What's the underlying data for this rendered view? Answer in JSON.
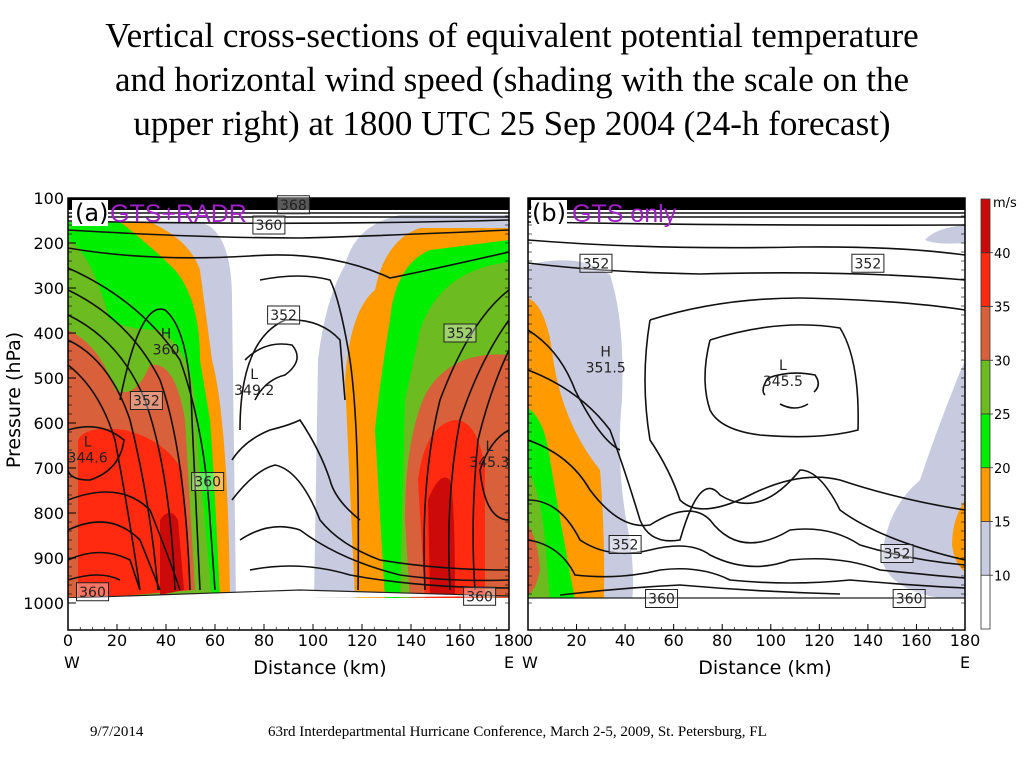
{
  "slide": {
    "title_lines": [
      "Vertical cross-sections of equivalent potential temperature",
      "and horizontal wind speed (shading with the scale on the",
      "upper right) at 1800 UTC 25 Sep 2004 (24-h forecast)"
    ],
    "footer_date": "9/7/2014",
    "footer_text": "63rd Interdepartmental Hurricane Conference, March 2-5, 2009, St. Petersburg, FL"
  },
  "chart_data": [
    {
      "type": "heatmap",
      "panel": "(a)",
      "run_label": "GTS+RADR",
      "title": "(a) GTS+RADR",
      "xlabel": "Distance (km)",
      "ylabel": "Pressure (hPa)",
      "x_ticks": [
        0,
        20,
        40,
        60,
        80,
        100,
        120,
        140,
        160,
        180
      ],
      "x_end_labels": {
        "left": "W",
        "right": "E"
      },
      "y_ticks": [
        100,
        200,
        300,
        400,
        500,
        600,
        700,
        800,
        900,
        1000
      ],
      "xlim": [
        0,
        180
      ],
      "ylim": [
        1000,
        100
      ],
      "shading_variable": "horizontal wind speed (m/s)",
      "contour_variable": "equivalent potential temperature (K)",
      "contour_labels": [
        {
          "value": "368",
          "x_km": 92,
          "p_hPa": 115
        },
        {
          "value": "360",
          "x_km": 82,
          "p_hPa": 160
        },
        {
          "value": "352",
          "x_km": 88,
          "p_hPa": 360
        },
        {
          "value": "352",
          "x_km": 160,
          "p_hPa": 400
        },
        {
          "value": "352",
          "x_km": 32,
          "p_hPa": 550
        },
        {
          "value": "360",
          "x_km": 57,
          "p_hPa": 730
        },
        {
          "value": "360",
          "x_km": 10,
          "p_hPa": 975
        },
        {
          "value": "360",
          "x_km": 168,
          "p_hPa": 985
        }
      ],
      "extrema": [
        {
          "type": "H",
          "value": "360",
          "x_km": 40,
          "p_hPa": 430
        },
        {
          "type": "L",
          "value": "349.2",
          "x_km": 76,
          "p_hPa": 520
        },
        {
          "type": "L",
          "value": "344.6",
          "x_km": 8,
          "p_hPa": 670
        },
        {
          "type": "L",
          "value": "345.3",
          "x_km": 172,
          "p_hPa": 680
        }
      ]
    },
    {
      "type": "heatmap",
      "panel": "(b)",
      "run_label": "GTS only",
      "title": "(b) GTS only",
      "xlabel": "Distance (km)",
      "ylabel": "",
      "x_ticks": [
        0,
        20,
        40,
        60,
        80,
        100,
        120,
        140,
        160,
        180
      ],
      "x_end_labels": {
        "left": "W",
        "right": "E"
      },
      "xlim": [
        0,
        180
      ],
      "ylim": [
        1000,
        100
      ],
      "shading_variable": "horizontal wind speed (m/s)",
      "contour_variable": "equivalent potential temperature (K)",
      "contour_labels": [
        {
          "value": "352",
          "x_km": 28,
          "p_hPa": 245
        },
        {
          "value": "352",
          "x_km": 140,
          "p_hPa": 245
        },
        {
          "value": "352",
          "x_km": 40,
          "p_hPa": 870
        },
        {
          "value": "352",
          "x_km": 152,
          "p_hPa": 890
        },
        {
          "value": "360",
          "x_km": 55,
          "p_hPa": 990
        },
        {
          "value": "360",
          "x_km": 157,
          "p_hPa": 990
        }
      ],
      "extrema": [
        {
          "type": "H",
          "value": "351.5",
          "x_km": 32,
          "p_hPa": 470
        },
        {
          "type": "L",
          "value": "345.5",
          "x_km": 105,
          "p_hPa": 500
        }
      ]
    }
  ],
  "colorbar": {
    "unit": "m/s",
    "tick_labels": [
      "10",
      "15",
      "20",
      "25",
      "30",
      "35",
      "40"
    ],
    "levels": [
      {
        "range": "<10",
        "color": "#ffffff"
      },
      {
        "range": "10-15",
        "color": "#c8cbe0"
      },
      {
        "range": "15-20",
        "color": "#ff9a00"
      },
      {
        "range": "20-25",
        "color": "#00ee00"
      },
      {
        "range": "25-30",
        "color": "#6cbb20"
      },
      {
        "range": "30-35",
        "color": "#d8603a"
      },
      {
        "range": "35-40",
        "color": "#ff2a10"
      },
      {
        "range": ">40",
        "color": "#cc0a0a"
      }
    ]
  }
}
